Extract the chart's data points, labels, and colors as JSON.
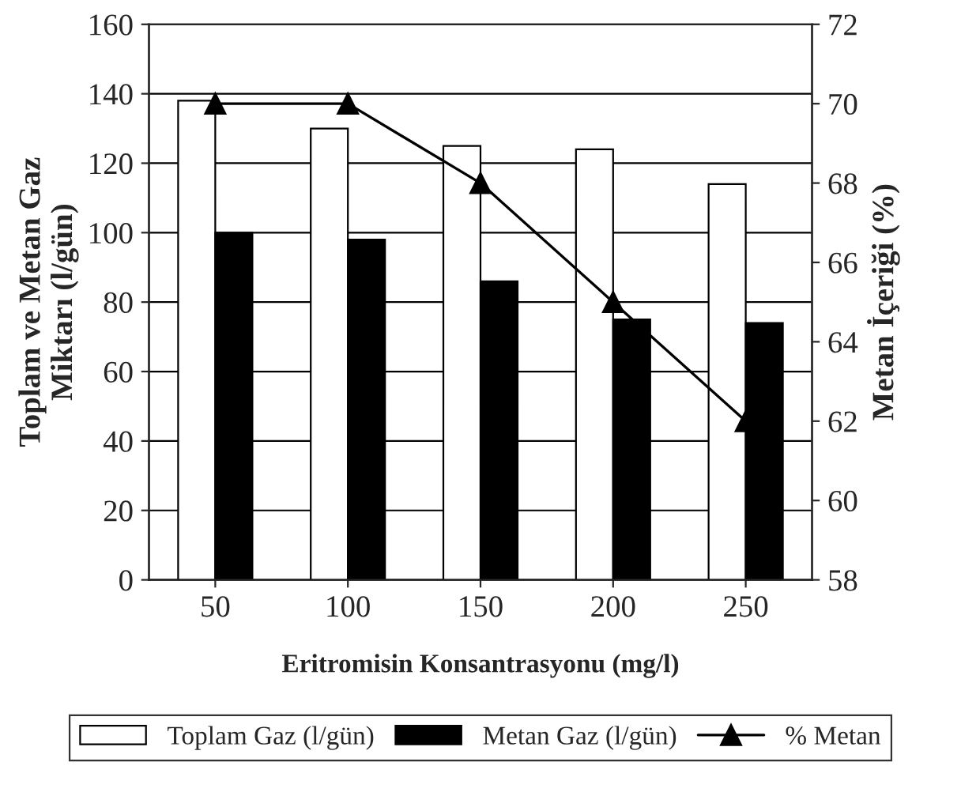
{
  "chart_data": {
    "type": "bar",
    "categories": [
      "50",
      "100",
      "150",
      "200",
      "250"
    ],
    "xlabel": "Eritromisin Konsantrasyonu (mg/l)",
    "ylabel": "Toplam ve Metan Gaz\nMiktarı (l/gün)",
    "y2label": "Metan İçeriği (%)",
    "series": [
      {
        "name": "Toplam Gaz (l/gün)",
        "color": "#ffffff",
        "values": [
          138,
          130,
          125,
          124,
          114
        ]
      },
      {
        "name": "Metan Gaz (l/gün)",
        "color": "#000000",
        "values": [
          100,
          98,
          86,
          75,
          74
        ]
      },
      {
        "name": "% Metan",
        "type": "line",
        "axis": "y2",
        "color": "#000000",
        "marker": "triangle",
        "line_style": "solid",
        "values": [
          70,
          70,
          68,
          65,
          62
        ]
      }
    ],
    "ylim": [
      0,
      160
    ],
    "yticks": [
      0,
      20,
      40,
      60,
      80,
      100,
      120,
      140,
      160
    ],
    "y2lim": [
      58,
      72
    ],
    "y2ticks": [
      58,
      60,
      62,
      64,
      66,
      68,
      70,
      72
    ],
    "grid": "y",
    "legend": "bottom"
  }
}
